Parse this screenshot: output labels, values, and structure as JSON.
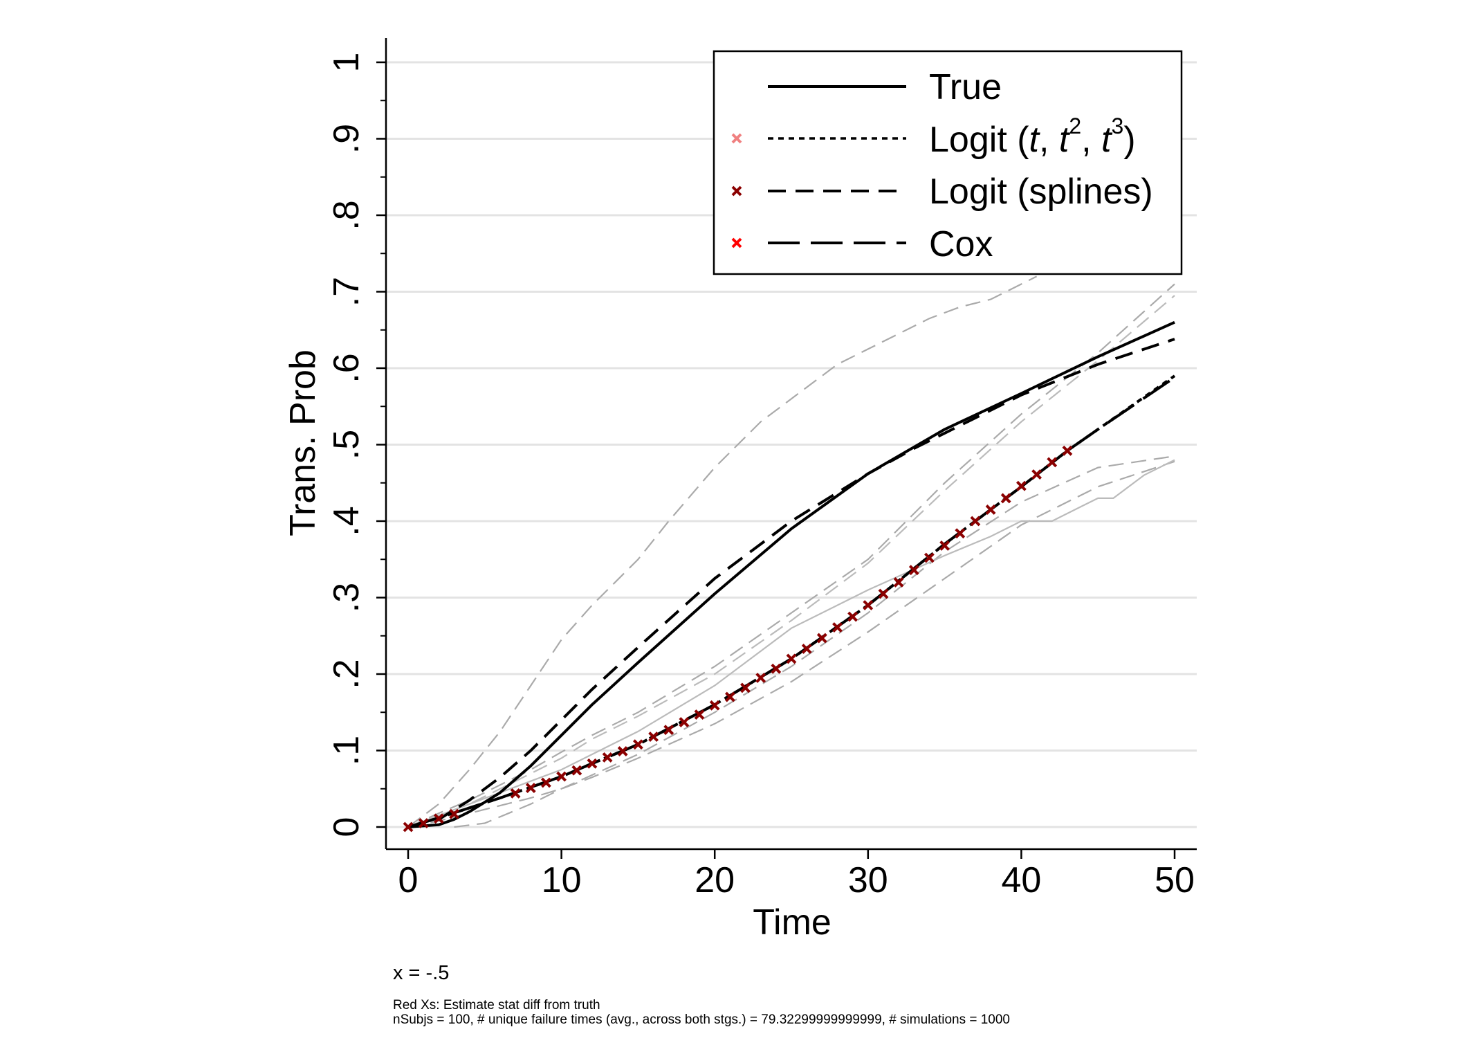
{
  "chart_data": {
    "type": "line",
    "xlabel": "Time",
    "ylabel": "Trans. Prob",
    "xlim": [
      0,
      50
    ],
    "ylim": [
      0,
      1
    ],
    "xticks": [
      0,
      10,
      20,
      30,
      40,
      50
    ],
    "xtick_labels": [
      "0",
      "10",
      "20",
      "30",
      "40",
      "50"
    ],
    "yticks": [
      0,
      0.1,
      0.2,
      0.3,
      0.4,
      0.5,
      0.6,
      0.7,
      0.8,
      0.9,
      1
    ],
    "ytick_labels": [
      "0",
      ".1",
      ".2",
      ".3",
      ".4",
      ".5",
      ".6",
      ".7",
      ".8",
      ".9",
      "1"
    ],
    "grid": "horizontal",
    "legend_position": "top-right",
    "legend": [
      {
        "label": "True",
        "line": "solid",
        "marker_color": ""
      },
      {
        "label_parts": [
          "Logit (",
          "t",
          ", ",
          "t",
          "2",
          ", ",
          "t",
          "3",
          ")"
        ],
        "line": "dotted",
        "marker_color": "#f08080"
      },
      {
        "label": "Logit (splines)",
        "line": "dashed",
        "marker_color": "#8b0000"
      },
      {
        "label": "Cox",
        "line": "longdash",
        "marker_color": "#ff0000"
      }
    ],
    "series": [
      {
        "name": "True",
        "style": "solid",
        "color": "#000000",
        "x": [
          0,
          2,
          3,
          4,
          6,
          8,
          10,
          12,
          15,
          20,
          25,
          30,
          35,
          40,
          45,
          50
        ],
        "y": [
          0,
          0.003,
          0.01,
          0.02,
          0.045,
          0.08,
          0.12,
          0.16,
          0.215,
          0.305,
          0.39,
          0.462,
          0.52,
          0.567,
          0.615,
          0.66
        ]
      },
      {
        "name": "Logit (splines)",
        "style": "dashed",
        "color": "#000000",
        "x": [
          0,
          2,
          4,
          6,
          8,
          10,
          12,
          15,
          20,
          25,
          30,
          33,
          35,
          40,
          45,
          50
        ],
        "y": [
          0,
          0.01,
          0.035,
          0.065,
          0.1,
          0.14,
          0.18,
          0.235,
          0.325,
          0.4,
          0.462,
          0.495,
          0.515,
          0.565,
          0.605,
          0.638
        ]
      },
      {
        "name": "Cox",
        "style": "longdash",
        "color": "#000000",
        "x": [
          0,
          2,
          4,
          6,
          8,
          10,
          12,
          15,
          20,
          25,
          30,
          35,
          40,
          43,
          45,
          50
        ],
        "y": [
          0,
          0.012,
          0.025,
          0.038,
          0.052,
          0.066,
          0.083,
          0.108,
          0.16,
          0.22,
          0.29,
          0.37,
          0.445,
          0.492,
          0.52,
          0.588
        ]
      },
      {
        "name": "Logit (t, t2, t3)",
        "style": "dotted",
        "color": "#000000",
        "x": [
          0,
          2,
          4,
          6,
          8,
          10,
          12,
          15,
          20,
          25,
          30,
          35,
          40,
          43,
          45,
          50
        ],
        "y": [
          0,
          0.012,
          0.025,
          0.038,
          0.052,
          0.066,
          0.083,
          0.108,
          0.16,
          0.22,
          0.29,
          0.37,
          0.445,
          0.492,
          0.52,
          0.59
        ]
      }
    ],
    "bands": [
      {
        "style": "dashed",
        "color": "#aaaaaa",
        "x": [
          0,
          2,
          4,
          6,
          8,
          10,
          12,
          15,
          17,
          20,
          23,
          26,
          28,
          30,
          32,
          34,
          36,
          38,
          40,
          41
        ],
        "y": [
          0,
          0.03,
          0.075,
          0.125,
          0.185,
          0.245,
          0.29,
          0.35,
          0.4,
          0.47,
          0.53,
          0.575,
          0.605,
          0.625,
          0.645,
          0.665,
          0.68,
          0.69,
          0.71,
          0.72
        ]
      },
      {
        "style": "dashed",
        "color": "#aaaaaa",
        "x": [
          3,
          5,
          8,
          10,
          12,
          15,
          20,
          25,
          30,
          35,
          40,
          45,
          50
        ],
        "y": [
          0,
          0.005,
          0.03,
          0.05,
          0.068,
          0.095,
          0.15,
          0.21,
          0.28,
          0.36,
          0.425,
          0.47,
          0.485
        ]
      },
      {
        "style": "dashed",
        "color": "#aaaaaa",
        "x": [
          0,
          2,
          4,
          6,
          8,
          10,
          12,
          15,
          20,
          25,
          30,
          35,
          40,
          45,
          50
        ],
        "y": [
          0,
          0.008,
          0.018,
          0.028,
          0.038,
          0.05,
          0.065,
          0.09,
          0.135,
          0.19,
          0.255,
          0.325,
          0.395,
          0.445,
          0.478
        ]
      },
      {
        "style": "dashed",
        "color": "#aaaaaa",
        "x": [
          0,
          2,
          4,
          6,
          8,
          10,
          12,
          15,
          20,
          25,
          30,
          35,
          40,
          45,
          50
        ],
        "y": [
          0,
          0.018,
          0.035,
          0.055,
          0.075,
          0.098,
          0.12,
          0.15,
          0.21,
          0.28,
          0.35,
          0.45,
          0.54,
          0.62,
          0.71
        ]
      },
      {
        "style": "dashed",
        "color": "#bbbbbb",
        "x": [
          0,
          2,
          4,
          6,
          8,
          10,
          12,
          15,
          20,
          25,
          30,
          35,
          40,
          45,
          50
        ],
        "y": [
          0,
          0.015,
          0.03,
          0.05,
          0.07,
          0.09,
          0.115,
          0.145,
          0.2,
          0.27,
          0.345,
          0.44,
          0.53,
          0.61,
          0.695
        ]
      },
      {
        "style": "solid",
        "color": "#bbbbbb",
        "x": [
          0,
          2,
          4,
          6,
          8,
          10,
          12,
          15,
          20,
          25,
          30,
          35,
          38,
          40,
          42,
          44,
          45,
          46,
          48,
          50
        ],
        "y": [
          0,
          0.015,
          0.03,
          0.045,
          0.06,
          0.075,
          0.095,
          0.125,
          0.185,
          0.26,
          0.31,
          0.355,
          0.38,
          0.4,
          0.4,
          0.42,
          0.43,
          0.43,
          0.46,
          0.48
        ]
      }
    ],
    "markers": {
      "label": "Red Xs: Estimate stat diff from truth",
      "color": "#8b0000",
      "x": [
        0,
        1,
        2,
        3,
        7,
        8,
        9,
        10,
        11,
        12,
        13,
        14,
        15,
        16,
        17,
        18,
        19,
        20,
        21,
        22,
        23,
        24,
        25,
        26,
        27,
        28,
        29,
        30,
        31,
        32,
        33,
        34,
        35,
        36,
        37,
        38,
        39,
        40,
        41,
        42,
        43
      ],
      "y": [
        0,
        0.005,
        0.011,
        0.017,
        0.044,
        0.051,
        0.058,
        0.066,
        0.074,
        0.083,
        0.091,
        0.099,
        0.108,
        0.118,
        0.127,
        0.137,
        0.147,
        0.159,
        0.17,
        0.182,
        0.195,
        0.207,
        0.22,
        0.233,
        0.247,
        0.261,
        0.275,
        0.29,
        0.305,
        0.32,
        0.336,
        0.352,
        0.368,
        0.384,
        0.4,
        0.415,
        0.43,
        0.446,
        0.461,
        0.477,
        0.492
      ]
    },
    "notes": {
      "subtitle": "x = -.5",
      "line1": "Red Xs: Estimate stat diff from truth",
      "line2": "nSubjs = 100, # unique failure times (avg., across both stgs.) = 79.32299999999999, # simulations = 1000"
    }
  }
}
